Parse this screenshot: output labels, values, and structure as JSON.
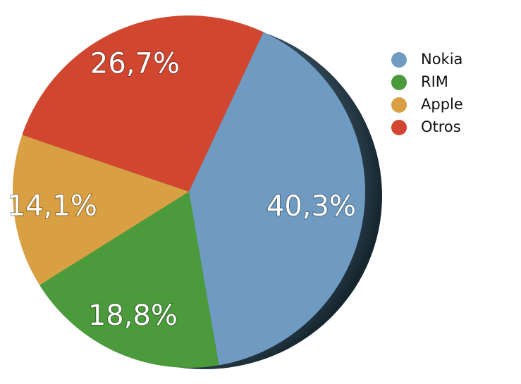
{
  "chart_data": {
    "type": "pie",
    "categories": [
      "Nokia",
      "RIM",
      "Apple",
      "Otros"
    ],
    "values": [
      40.3,
      18.8,
      14.1,
      26.7
    ],
    "value_labels": [
      "40,3%",
      "18,8%",
      "14,1%",
      "26,7%"
    ],
    "colors": [
      "#6f9bc2",
      "#4b9a3b",
      "#d9a043",
      "#d1462f"
    ],
    "legend": "right"
  }
}
